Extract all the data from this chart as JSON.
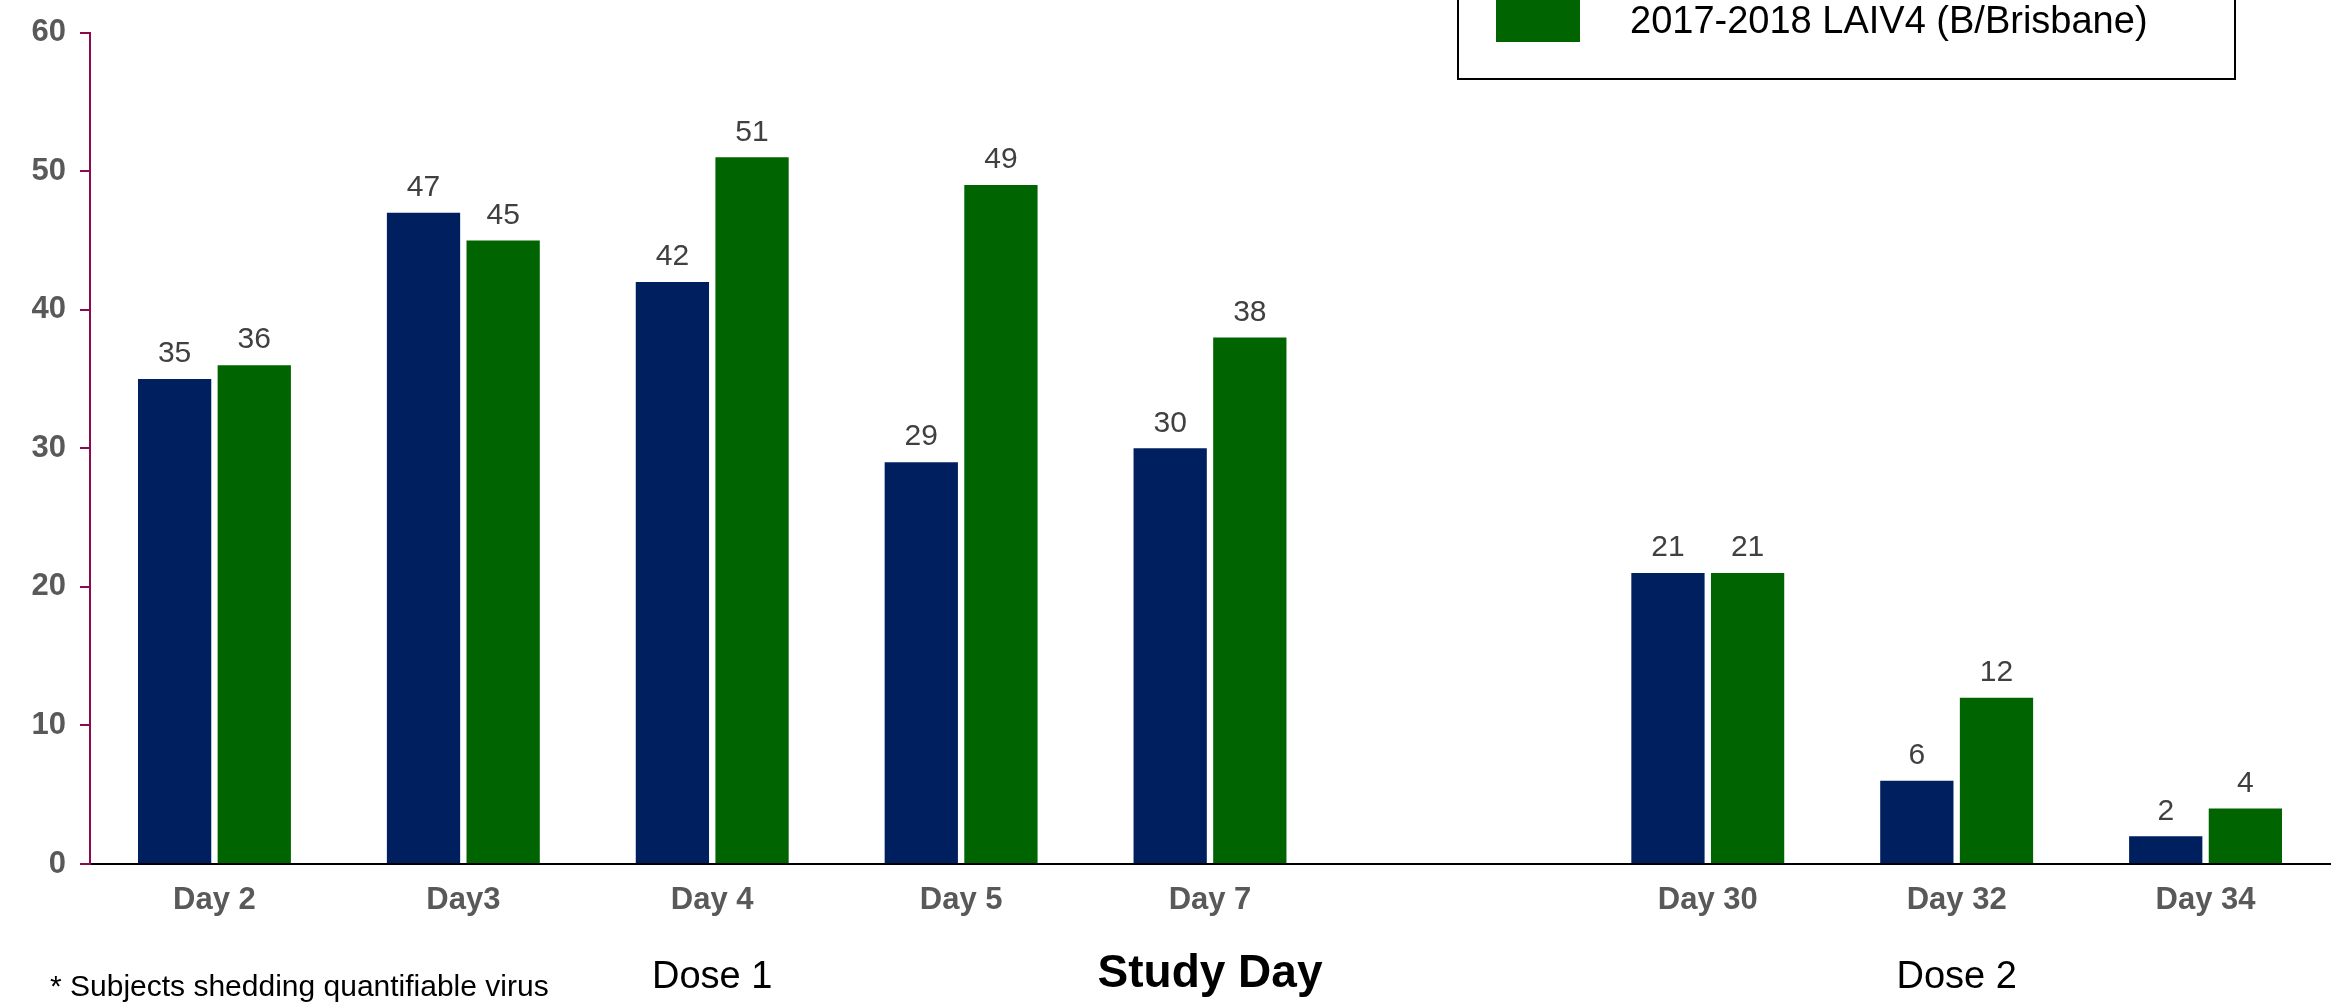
{
  "chart_data": {
    "type": "bar",
    "xlabel": "Study Day",
    "categories": [
      "Day 2",
      "Day3",
      "Day 4",
      "Day 5",
      "Day 7",
      null,
      "Day 30",
      "Day 32",
      "Day 34"
    ],
    "series": [
      {
        "color": "#001f5f",
        "values": [
          35,
          47,
          42,
          29,
          30,
          null,
          21,
          6,
          2
        ]
      },
      {
        "name": "2017-2018 LAIV4 (B/Brisbane)",
        "color": "#006400",
        "values": [
          36,
          45,
          51,
          49,
          38,
          null,
          21,
          12,
          4
        ]
      }
    ],
    "ylim": [
      0,
      60
    ],
    "yticks": [
      0,
      10,
      20,
      30,
      40,
      50,
      60
    ],
    "grid": false,
    "legend": "top right",
    "data_labels": true,
    "annotations": [
      "Dose 1",
      "Dose 2",
      "* Subjects shedding quantifiable virus"
    ]
  }
}
